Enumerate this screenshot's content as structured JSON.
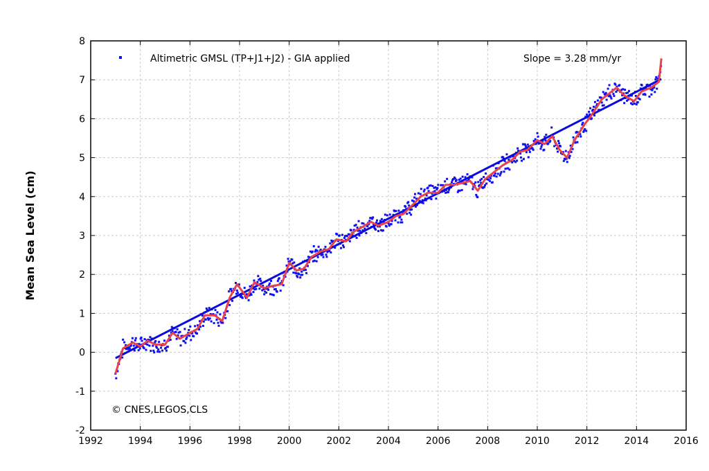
{
  "chart_data": {
    "type": "scatter",
    "ylabel": "Mean Sea Level (cm)",
    "xlabel": "",
    "xlim": [
      1992,
      2016
    ],
    "ylim": [
      -2,
      8
    ],
    "x_ticks": [
      "1992",
      "1994",
      "1996",
      "1998",
      "2000",
      "2002",
      "2004",
      "2006",
      "2008",
      "2010",
      "2012",
      "2014",
      "2016"
    ],
    "y_ticks": [
      "-2",
      "-1",
      "0",
      "1",
      "2",
      "3",
      "4",
      "5",
      "6",
      "7",
      "8"
    ],
    "grid": true,
    "legend_position": "top-left",
    "legend_label": "Altimetric GMSL (TP+J1+J2) - GIA applied",
    "slope_text": "Slope = 3.28 mm/yr",
    "copyright_text": "© CNES,LEGOS,CLS",
    "colors": {
      "points": "#1010ee",
      "trend": "#0a0adc",
      "smooth": "#e8434c"
    },
    "trend": {
      "x": [
        1993.0,
        2015.0
      ],
      "y": [
        -0.15,
        7.02
      ]
    },
    "smooth": {
      "x": [
        1993.0,
        1993.3,
        1993.7,
        1994.0,
        1994.3,
        1994.6,
        1995.0,
        1995.3,
        1995.6,
        1996.0,
        1996.3,
        1996.6,
        1997.0,
        1997.3,
        1997.6,
        1997.9,
        1998.3,
        1998.6,
        1999.0,
        1999.3,
        1999.7,
        2000.0,
        2000.3,
        2000.6,
        2000.9,
        2001.3,
        2001.6,
        2001.9,
        2002.3,
        2002.6,
        2002.9,
        2003.3,
        2003.6,
        2004.0,
        2004.3,
        2004.6,
        2005.0,
        2005.3,
        2005.6,
        2006.0,
        2006.3,
        2006.6,
        2007.0,
        2007.3,
        2007.6,
        2007.9,
        2008.3,
        2008.6,
        2009.0,
        2009.3,
        2009.6,
        2010.0,
        2010.3,
        2010.6,
        2010.9,
        2011.2,
        2011.5,
        2011.9,
        2012.2,
        2012.6,
        2012.9,
        2013.2,
        2013.5,
        2013.9,
        2014.2,
        2014.6,
        2014.9,
        2015.0
      ],
      "y": [
        -0.55,
        0.1,
        0.25,
        0.15,
        0.3,
        0.2,
        0.2,
        0.5,
        0.35,
        0.5,
        0.6,
        0.95,
        0.95,
        0.8,
        1.4,
        1.75,
        1.4,
        1.8,
        1.65,
        1.7,
        1.75,
        2.3,
        2.1,
        2.15,
        2.45,
        2.6,
        2.65,
        2.9,
        2.85,
        3.1,
        3.2,
        3.35,
        3.25,
        3.35,
        3.5,
        3.55,
        3.8,
        4.0,
        4.1,
        4.1,
        4.3,
        4.3,
        4.35,
        4.4,
        4.15,
        4.45,
        4.65,
        4.8,
        4.95,
        5.15,
        5.2,
        5.45,
        5.35,
        5.55,
        5.2,
        5.0,
        5.45,
        5.85,
        6.1,
        6.5,
        6.65,
        6.8,
        6.6,
        6.45,
        6.7,
        6.8,
        6.95,
        7.55
      ]
    },
    "points_note": "dense 10-day altimetric samples scattered around the smoothed curve"
  }
}
